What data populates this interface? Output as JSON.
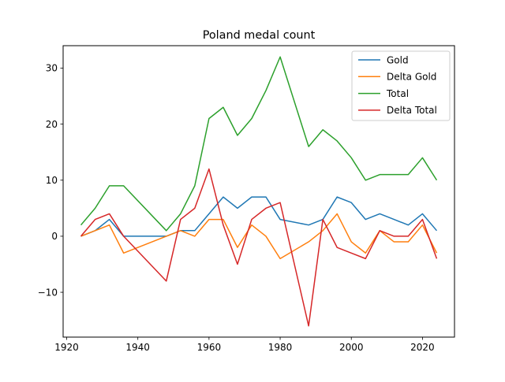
{
  "chart_data": {
    "type": "line",
    "title": "Poland medal count",
    "xlabel": "",
    "ylabel": "",
    "xlim": [
      1919,
      2029
    ],
    "ylim": [
      -18,
      34
    ],
    "x_ticks": [
      1920,
      1940,
      1960,
      1980,
      2000,
      2020
    ],
    "y_ticks": [
      -10,
      0,
      10,
      20,
      30
    ],
    "y_tick_labels": [
      "−10",
      "0",
      "10",
      "20",
      "30"
    ],
    "grid": false,
    "legend_position": "top-right",
    "x": [
      1924,
      1928,
      1932,
      1936,
      1948,
      1952,
      1956,
      1960,
      1964,
      1968,
      1972,
      1976,
      1980,
      1988,
      1992,
      1996,
      2000,
      2004,
      2008,
      2012,
      2016,
      2020,
      2024
    ],
    "series": [
      {
        "name": "Gold",
        "color": "#1f77b4",
        "values": [
          0,
          1,
          3,
          0,
          0,
          1,
          1,
          4,
          7,
          5,
          7,
          7,
          3,
          2,
          3,
          7,
          6,
          3,
          4,
          3,
          2,
          4,
          1
        ]
      },
      {
        "name": "Delta Gold",
        "color": "#ff7f0e",
        "values": [
          0,
          1,
          2,
          -3,
          0,
          1,
          0,
          3,
          3,
          -2,
          2,
          0,
          -4,
          -1,
          1,
          4,
          -1,
          -3,
          1,
          -1,
          -1,
          2,
          -3
        ]
      },
      {
        "name": "Total",
        "color": "#2ca02c",
        "values": [
          2,
          5,
          9,
          9,
          1,
          4,
          9,
          21,
          23,
          18,
          21,
          26,
          32,
          16,
          19,
          17,
          14,
          10,
          11,
          11,
          11,
          14,
          10
        ]
      },
      {
        "name": "Delta Total",
        "color": "#d62728",
        "values": [
          0,
          3,
          4,
          0,
          -8,
          3,
          5,
          12,
          2,
          -5,
          3,
          5,
          6,
          -16,
          3,
          -2,
          -3,
          -4,
          1,
          0,
          0,
          3,
          -4
        ]
      }
    ]
  }
}
